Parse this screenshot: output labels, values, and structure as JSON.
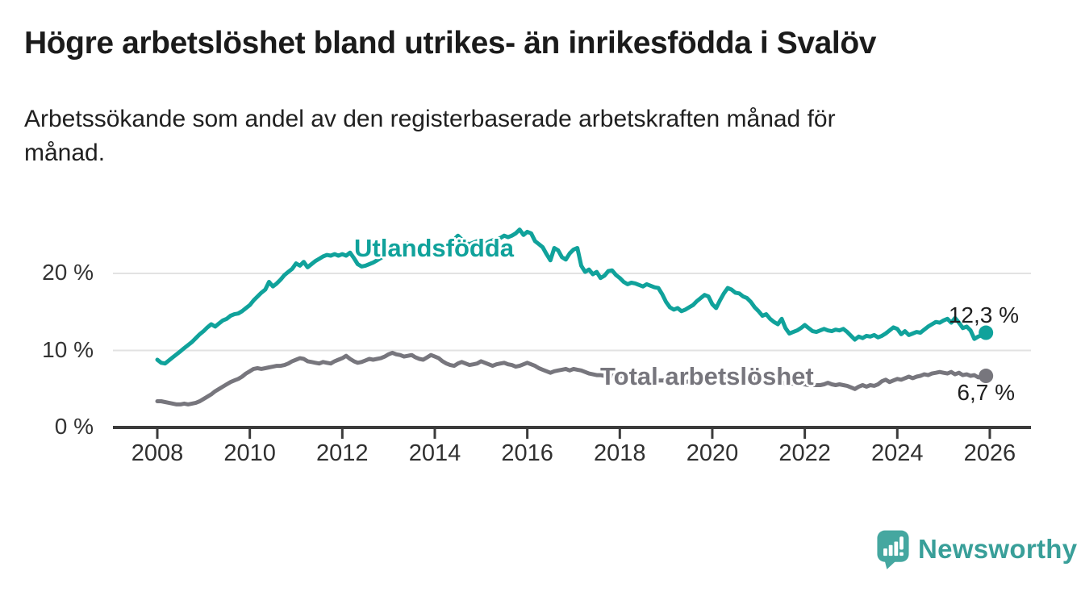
{
  "chart_data": {
    "type": "line",
    "title": "Högre arbetslöshet bland utrikes- än inrikesfödda i Svalöv",
    "subtitle_lines": [
      "Arbetssökande som andel av den registerbaserade arbetskraften månad för",
      "månad."
    ],
    "x_start": 2008.0,
    "x_step": 0.0833333,
    "x_unit": "year (monthly data)",
    "x_ticks": [
      2008,
      2010,
      2012,
      2014,
      2016,
      2018,
      2020,
      2022,
      2024,
      2026
    ],
    "y_ticks": [
      {
        "value": 0,
        "label": "0 %"
      },
      {
        "value": 10,
        "label": "10 %"
      },
      {
        "value": 20,
        "label": "20 %"
      }
    ],
    "ylim": [
      0,
      27.5
    ],
    "xlim": [
      2007.0,
      2026.9
    ],
    "grid": "horizontal-light",
    "legend_position": "inline-labels",
    "series": [
      {
        "name": "Utlandsfödda",
        "color": "#10a29b",
        "end_label": "12,3 %",
        "end_value": 12.3,
        "values": [
          8.8,
          8.4,
          8.3,
          8.7,
          9.1,
          9.5,
          9.9,
          10.3,
          10.7,
          11.1,
          11.6,
          12.1,
          12.5,
          13.0,
          13.4,
          13.1,
          13.5,
          13.9,
          14.1,
          14.5,
          14.7,
          14.8,
          15.1,
          15.5,
          15.9,
          16.5,
          17.0,
          17.5,
          17.9,
          18.9,
          18.3,
          18.7,
          19.2,
          19.8,
          20.2,
          20.6,
          21.3,
          21.0,
          21.5,
          20.8,
          21.2,
          21.6,
          21.9,
          22.2,
          22.4,
          22.3,
          22.5,
          22.3,
          22.5,
          22.3,
          22.7,
          22.0,
          21.2,
          20.9,
          21.0,
          21.2,
          21.4,
          21.7,
          22.0,
          22.3,
          22.6,
          22.9,
          23.1,
          22.9,
          23.3,
          23.9,
          23.7,
          23.5,
          23.3,
          23.6,
          23.4,
          23.2,
          23.4,
          23.1,
          23.3,
          23.6,
          23.9,
          24.4,
          24.9,
          24.4,
          24.0,
          23.8,
          24.0,
          24.2,
          24.0,
          23.8,
          24.1,
          24.3,
          24.4,
          24.6,
          24.9,
          24.7,
          24.9,
          25.2,
          25.7,
          25.0,
          25.4,
          25.2,
          24.2,
          23.8,
          23.4,
          22.5,
          21.7,
          23.3,
          23.0,
          22.1,
          21.8,
          22.6,
          23.1,
          23.3,
          21.0,
          20.2,
          20.5,
          19.9,
          20.2,
          19.4,
          19.7,
          20.3,
          20.4,
          19.8,
          19.4,
          18.9,
          18.6,
          18.8,
          18.7,
          18.5,
          18.3,
          18.6,
          18.4,
          18.2,
          18.1,
          17.3,
          16.3,
          15.6,
          15.3,
          15.5,
          15.1,
          15.3,
          15.6,
          15.9,
          16.4,
          16.8,
          17.2,
          17.0,
          16.0,
          15.5,
          16.5,
          17.4,
          18.1,
          17.9,
          17.5,
          17.4,
          17.0,
          16.8,
          16.3,
          15.6,
          15.1,
          14.5,
          14.7,
          14.1,
          13.7,
          13.4,
          14.1,
          12.9,
          12.2,
          12.4,
          12.6,
          12.9,
          13.3,
          12.9,
          12.5,
          12.4,
          12.6,
          12.8,
          12.6,
          12.5,
          12.7,
          12.6,
          12.8,
          12.4,
          11.9,
          11.4,
          11.8,
          11.6,
          11.9,
          11.8,
          12.0,
          11.7,
          11.9,
          12.2,
          12.6,
          13.0,
          12.8,
          12.1,
          12.5,
          12.0,
          12.2,
          12.4,
          12.3,
          12.7,
          13.1,
          13.4,
          13.7,
          13.6,
          13.9,
          14.1,
          13.6,
          14.2,
          13.6,
          12.9,
          13.1,
          12.6,
          11.5,
          11.8,
          12.0,
          12.3
        ]
      },
      {
        "name": "Total arbetslöshet",
        "color": "#77767d",
        "end_label": "6,7 %",
        "end_value": 6.7,
        "values": [
          3.4,
          3.4,
          3.3,
          3.2,
          3.1,
          3.0,
          3.0,
          3.1,
          3.0,
          3.1,
          3.2,
          3.4,
          3.7,
          4.0,
          4.3,
          4.7,
          5.0,
          5.3,
          5.6,
          5.9,
          6.1,
          6.3,
          6.6,
          7.0,
          7.3,
          7.6,
          7.7,
          7.6,
          7.7,
          7.8,
          7.9,
          8.0,
          8.0,
          8.1,
          8.3,
          8.6,
          8.8,
          9.0,
          8.9,
          8.6,
          8.5,
          8.4,
          8.3,
          8.5,
          8.4,
          8.3,
          8.6,
          8.8,
          9.0,
          9.3,
          8.9,
          8.6,
          8.4,
          8.5,
          8.7,
          8.9,
          8.8,
          8.9,
          9.0,
          9.2,
          9.5,
          9.7,
          9.5,
          9.4,
          9.2,
          9.3,
          9.4,
          9.1,
          8.9,
          8.8,
          9.1,
          9.4,
          9.2,
          9.0,
          8.6,
          8.3,
          8.1,
          8.0,
          8.3,
          8.5,
          8.3,
          8.1,
          8.2,
          8.3,
          8.6,
          8.4,
          8.2,
          8.0,
          8.2,
          8.3,
          8.4,
          8.2,
          8.1,
          7.9,
          8.0,
          8.2,
          8.4,
          8.2,
          8.0,
          7.7,
          7.5,
          7.3,
          7.1,
          7.3,
          7.4,
          7.5,
          7.6,
          7.4,
          7.6,
          7.5,
          7.4,
          7.2,
          7.0,
          6.9,
          6.8,
          6.8,
          6.7,
          6.8,
          6.7,
          6.8,
          6.7,
          6.6,
          6.5,
          6.5,
          6.4,
          6.4,
          6.3,
          6.3,
          6.2,
          6.2,
          6.1,
          6.1,
          6.1,
          6.0,
          6.0,
          5.9,
          5.9,
          5.9,
          6.0,
          6.0,
          6.0,
          6.0,
          6.1,
          6.1,
          6.1,
          6.2,
          6.4,
          6.5,
          6.7,
          6.7,
          6.6,
          6.6,
          6.5,
          6.5,
          6.4,
          6.4,
          6.3,
          6.2,
          6.1,
          6.0,
          5.9,
          5.9,
          5.8,
          5.8,
          5.7,
          5.7,
          5.6,
          5.6,
          5.6,
          5.5,
          5.5,
          5.5,
          5.5,
          5.6,
          5.8,
          5.6,
          5.5,
          5.6,
          5.5,
          5.4,
          5.2,
          5.0,
          5.3,
          5.5,
          5.3,
          5.5,
          5.4,
          5.6,
          6.0,
          6.2,
          5.9,
          6.1,
          6.3,
          6.2,
          6.4,
          6.6,
          6.4,
          6.6,
          6.7,
          6.9,
          6.8,
          7.0,
          7.1,
          7.2,
          7.1,
          7.0,
          7.2,
          6.9,
          7.1,
          6.8,
          6.9,
          6.7,
          6.8,
          6.5,
          6.6,
          6.7
        ]
      }
    ],
    "style": {
      "axis_color": "#3b3b3b",
      "gridline_color": "#e2e2e2",
      "background": "#ffffff",
      "line_width": 5
    }
  },
  "branding": {
    "logo_text": "Newsworthy",
    "logo_icon": "bar-chart-speech-bubble-icon",
    "logo_color": "#45a7a0"
  }
}
